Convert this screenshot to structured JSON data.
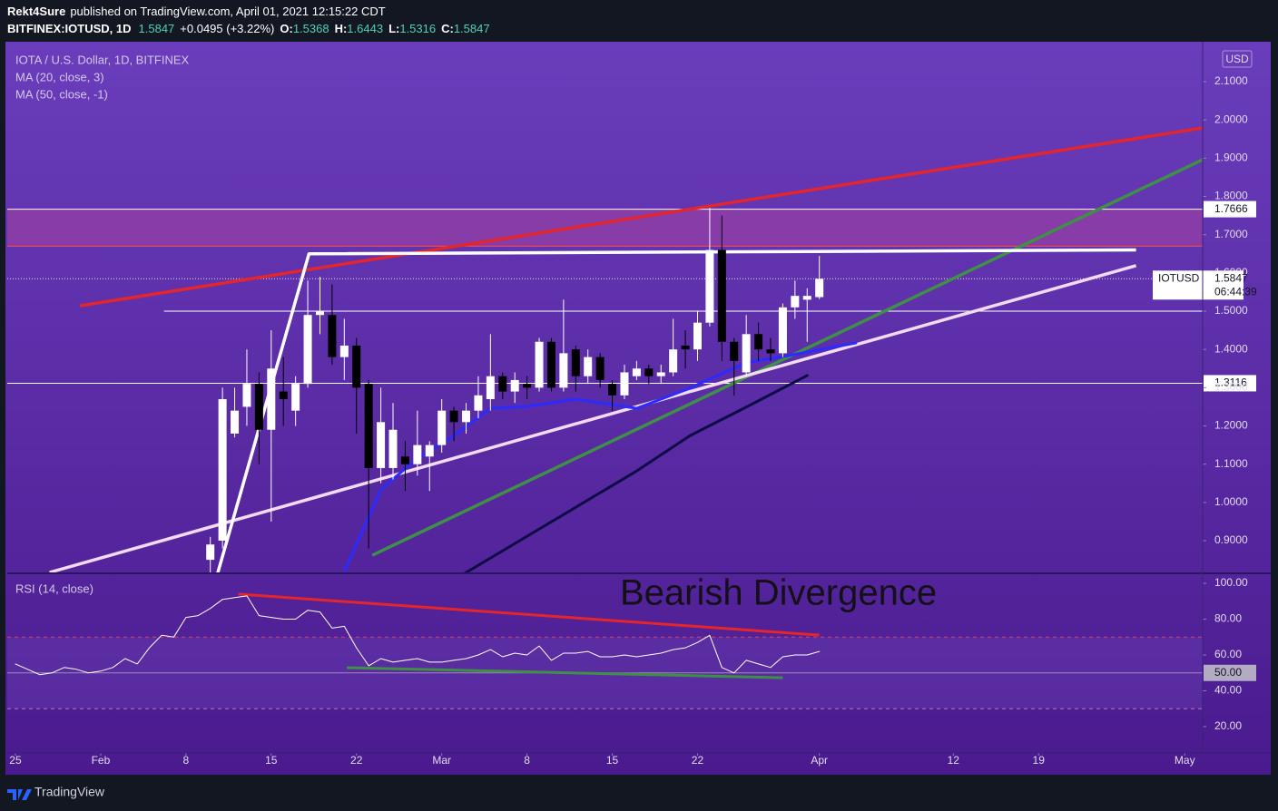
{
  "header": {
    "publisher": "Rekt4Sure",
    "published": "published on TradingView.com, April 01, 2021 12:15:22 CDT",
    "symbol": "BITFINEX:IOTUSD, 1D",
    "last": "1.5847",
    "change": "+0.0495 (+3.22%)",
    "ohlc": [
      {
        "label": "O:",
        "value": "1.5368"
      },
      {
        "label": "H:",
        "value": "1.6443"
      },
      {
        "label": "L:",
        "value": "1.5316"
      },
      {
        "label": "C:",
        "value": "1.5847"
      }
    ]
  },
  "footer": {
    "brand": "TradingView"
  },
  "chart_data": [
    {
      "type": "candlestick",
      "title": "IOTA / U.S. Dollar, 1D, BITFINEX",
      "currency": "USD",
      "up_color": "#ffffff",
      "down_color": "#000000",
      "xlim": [
        -0.67,
        97.47
      ],
      "xticks": [
        {
          "value": 0,
          "label": "25"
        },
        {
          "value": 7,
          "label": "Feb"
        },
        {
          "value": 14,
          "label": "8"
        },
        {
          "value": 21,
          "label": "15"
        },
        {
          "value": 28,
          "label": "22"
        },
        {
          "value": 35,
          "label": "Mar"
        },
        {
          "value": 42,
          "label": "8"
        },
        {
          "value": 49,
          "label": "15"
        },
        {
          "value": 56,
          "label": "22"
        },
        {
          "value": 66,
          "label": "Apr"
        },
        {
          "value": 77,
          "label": "12"
        },
        {
          "value": 84,
          "label": "19"
        },
        {
          "value": 96,
          "label": "May"
        }
      ],
      "ylim": [
        0.8147,
        2.1996
      ],
      "yticks": [
        {
          "value": 0.9,
          "label": "0.9000"
        },
        {
          "value": 1.0,
          "label": "1.0000"
        },
        {
          "value": 1.1,
          "label": "1.1000"
        },
        {
          "value": 1.2,
          "label": "1.2000"
        },
        {
          "value": 1.3,
          "label": "1.3000"
        },
        {
          "value": 1.4,
          "label": "1.4000"
        },
        {
          "value": 1.5,
          "label": "1.5000"
        },
        {
          "value": 1.6,
          "label": "1.6000"
        },
        {
          "value": 1.7,
          "label": "1.7000"
        },
        {
          "value": 1.8,
          "label": "1.8000"
        },
        {
          "value": 1.9,
          "label": "1.9000"
        },
        {
          "value": 2.0,
          "label": "2.0000"
        },
        {
          "value": 2.1,
          "label": "2.1000"
        }
      ],
      "grid": false,
      "x": [
        16,
        17,
        18,
        19,
        20,
        21,
        22,
        23,
        24,
        25,
        26,
        27,
        28,
        29,
        30,
        31,
        32,
        33,
        34,
        35,
        36,
        37,
        38,
        39,
        40,
        41,
        42,
        43,
        44,
        45,
        46,
        47,
        48,
        49,
        50,
        51,
        52,
        53,
        54,
        55,
        56,
        57,
        58,
        59,
        60,
        61,
        62,
        63,
        64,
        65,
        66
      ],
      "open": [
        0.85,
        0.9,
        1.18,
        1.25,
        1.31,
        1.19,
        1.29,
        1.24,
        1.31,
        1.49,
        1.49,
        1.38,
        1.41,
        1.31,
        1.09,
        1.09,
        1.12,
        1.1,
        1.12,
        1.15,
        1.24,
        1.21,
        1.24,
        1.27,
        1.33,
        1.29,
        1.31,
        1.3,
        1.42,
        1.3,
        1.4,
        1.33,
        1.38,
        1.31,
        1.28,
        1.33,
        1.35,
        1.33,
        1.34,
        1.41,
        1.4,
        1.47,
        1.66,
        1.42,
        1.34,
        1.44,
        1.4,
        1.39,
        1.51,
        1.53,
        1.5368
      ],
      "high": [
        0.91,
        1.3,
        1.3,
        1.4,
        1.34,
        1.45,
        1.38,
        1.33,
        1.58,
        1.59,
        1.57,
        1.48,
        1.43,
        1.32,
        1.3,
        1.26,
        1.16,
        1.24,
        1.16,
        1.27,
        1.25,
        1.26,
        1.33,
        1.44,
        1.34,
        1.34,
        1.33,
        1.43,
        1.43,
        1.53,
        1.41,
        1.4,
        1.39,
        1.32,
        1.36,
        1.37,
        1.36,
        1.36,
        1.48,
        1.45,
        1.5,
        1.77,
        1.75,
        1.43,
        1.49,
        1.47,
        1.43,
        1.52,
        1.58,
        1.56,
        1.6443
      ],
      "low": [
        0.8,
        0.88,
        1.17,
        1.2,
        1.1,
        0.95,
        1.2,
        1.2,
        1.3,
        1.44,
        1.36,
        1.32,
        1.18,
        0.88,
        1.05,
        1.06,
        1.03,
        1.07,
        1.03,
        1.13,
        1.16,
        1.18,
        1.22,
        1.24,
        1.27,
        1.26,
        1.27,
        1.29,
        1.29,
        1.29,
        1.29,
        1.31,
        1.3,
        1.24,
        1.27,
        1.32,
        1.31,
        1.31,
        1.33,
        1.35,
        1.37,
        1.46,
        1.37,
        1.28,
        1.33,
        1.37,
        1.37,
        1.38,
        1.48,
        1.42,
        1.5316
      ],
      "close": [
        0.89,
        1.27,
        1.24,
        1.31,
        1.19,
        1.35,
        1.27,
        1.31,
        1.49,
        1.5,
        1.38,
        1.41,
        1.3,
        1.09,
        1.21,
        1.19,
        1.1,
        1.15,
        1.15,
        1.24,
        1.21,
        1.24,
        1.28,
        1.33,
        1.29,
        1.32,
        1.3,
        1.42,
        1.3,
        1.39,
        1.33,
        1.38,
        1.32,
        1.28,
        1.34,
        1.35,
        1.33,
        1.34,
        1.4,
        1.4,
        1.47,
        1.66,
        1.42,
        1.37,
        1.44,
        1.4,
        1.39,
        1.51,
        1.54,
        1.54,
        1.5847
      ],
      "ma": [
        {
          "name": "MA (20, close, 3)",
          "color": "#2b2bff",
          "x": [
            27,
            30,
            33,
            36,
            39,
            42,
            46,
            51,
            55,
            60,
            63.5,
            69
          ],
          "values": [
            0.82,
            1.033,
            1.116,
            1.175,
            1.246,
            1.251,
            1.27,
            1.246,
            1.294,
            1.365,
            1.384,
            1.417
          ]
        },
        {
          "name": "MA (50, close, -1)",
          "color": "#0d0b45",
          "x": [
            36.9,
            43.4,
            50.9,
            55.4,
            59.8,
            65
          ],
          "values": [
            0.815,
            0.938,
            1.08,
            1.175,
            1.246,
            1.332
          ]
        }
      ],
      "zone": {
        "from": 1.67,
        "to": 1.7666,
        "color": "#b8479d"
      },
      "levels": [
        {
          "value": 1.7666,
          "color": "#ffffff",
          "axis_label": true
        },
        {
          "value": 1.67,
          "color": "#ff4a4a"
        },
        {
          "value": 1.5,
          "color": "#ffffff",
          "from": 12.2
        },
        {
          "value": 1.3116,
          "color": "#ffffff",
          "axis_label": true
        }
      ],
      "drawings": [
        {
          "color": "#e3262d",
          "x": [
            5.3,
            97.47
          ],
          "y": [
            1.514,
            1.979
          ]
        },
        {
          "color": "#3f8f46",
          "x": [
            29.3,
            97.47
          ],
          "y": [
            0.862,
            1.896
          ]
        },
        {
          "color": "#f2dbef",
          "x": [
            2.8,
            92
          ],
          "y": [
            0.817,
            1.619
          ]
        },
        {
          "color": "#ffffff",
          "x": [
            16.6,
            24.1,
            92
          ],
          "y": [
            0.815,
            1.65,
            1.66
          ]
        }
      ],
      "last": {
        "symbol": "IOTUSD",
        "value": 1.5847,
        "countdown": "06:44:39"
      }
    },
    {
      "type": "line",
      "title": "RSI (14, close)",
      "color": "#ffffff",
      "ylim": [
        5.3,
        105.6
      ],
      "yticks": [
        {
          "value": 20,
          "label": "20.00"
        },
        {
          "value": 40,
          "label": "40.00"
        },
        {
          "value": 60,
          "label": "60.00"
        },
        {
          "value": 80,
          "label": "80.00"
        },
        {
          "value": 100,
          "label": "100.00"
        }
      ],
      "x": [
        0,
        1,
        2,
        3,
        4,
        5,
        6,
        7,
        8,
        9,
        10,
        11,
        12,
        13,
        14,
        15,
        16,
        17,
        18,
        19,
        20,
        21,
        22,
        23,
        24,
        25,
        26,
        27,
        28,
        29,
        30,
        31,
        32,
        33,
        34,
        35,
        36,
        37,
        38,
        39,
        40,
        41,
        42,
        43,
        44,
        45,
        46,
        47,
        48,
        49,
        50,
        51,
        52,
        53,
        54,
        55,
        56,
        57,
        58,
        59,
        60,
        61,
        62,
        63,
        64,
        65,
        66
      ],
      "values": [
        55,
        52,
        49,
        50,
        53,
        52,
        50,
        51,
        53,
        58,
        55,
        64,
        71,
        70,
        81,
        82,
        86,
        91,
        92,
        93,
        82,
        81,
        80,
        80,
        85,
        84,
        75,
        76,
        64,
        54,
        58,
        56,
        57,
        58,
        56,
        56,
        57,
        58,
        60,
        63,
        59,
        61,
        60,
        65,
        57,
        61,
        61,
        62,
        59,
        59,
        60,
        59,
        60,
        61,
        63,
        64,
        67,
        71,
        53,
        50,
        57,
        55,
        53,
        59,
        60,
        60,
        62
      ],
      "band": {
        "from": 30,
        "to": 70,
        "color": "#7c55c9"
      },
      "levels": [
        {
          "value": 70,
          "color": "#e0405a",
          "dashed": true
        },
        {
          "value": 50,
          "color": "#9b8cb4",
          "label": "50.00"
        },
        {
          "value": 30,
          "color": "#c27aa6",
          "dashed": true
        }
      ],
      "drawings": [
        {
          "color": "#e3262d",
          "x": [
            18.3,
            66
          ],
          "y": [
            94,
            71.1
          ]
        },
        {
          "color": "#3f8f46",
          "x": [
            27.2,
            63
          ],
          "y": [
            52.9,
            47.3
          ]
        }
      ],
      "annotation": "Bearish Divergence"
    }
  ]
}
